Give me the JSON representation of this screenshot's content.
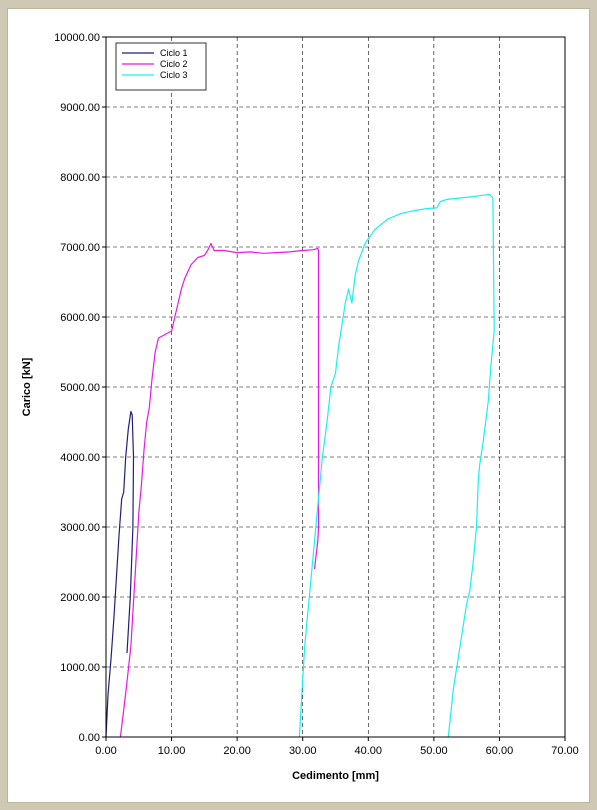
{
  "chart_data": {
    "type": "line",
    "xlabel": "Cedimento [mm]",
    "ylabel": "Carico [kN]",
    "xlim": [
      0,
      70
    ],
    "ylim": [
      0,
      10000
    ],
    "x_ticks": [
      "0.00",
      "10.00",
      "20.00",
      "30.00",
      "40.00",
      "50.00",
      "60.00",
      "70.00"
    ],
    "y_ticks": [
      "0.00",
      "1000.00",
      "2000.00",
      "3000.00",
      "4000.00",
      "5000.00",
      "6000.00",
      "7000.00",
      "8000.00",
      "9000.00",
      "10000.00"
    ],
    "grid": true,
    "legend_position": "top-left",
    "series": [
      {
        "name": "Ciclo 1",
        "color": "#1f1f7a",
        "points": [
          [
            0,
            0
          ],
          [
            0.3,
            600
          ],
          [
            0.8,
            1150
          ],
          [
            1.2,
            1700
          ],
          [
            1.6,
            2300
          ],
          [
            2.0,
            2900
          ],
          [
            2.4,
            3400
          ],
          [
            2.7,
            3500
          ],
          [
            3.0,
            4000
          ],
          [
            3.4,
            4400
          ],
          [
            3.8,
            4650
          ],
          [
            4.0,
            4600
          ],
          [
            4.2,
            4000
          ],
          [
            4.1,
            3000
          ],
          [
            3.7,
            2000
          ],
          [
            3.2,
            1200
          ]
        ]
      },
      {
        "name": "Ciclo 2",
        "color": "#e619e6",
        "points": [
          [
            2.2,
            0
          ],
          [
            2.6,
            300
          ],
          [
            3.1,
            700
          ],
          [
            3.8,
            1300
          ],
          [
            4.5,
            2400
          ],
          [
            5.0,
            3200
          ],
          [
            5.4,
            3600
          ],
          [
            5.8,
            4100
          ],
          [
            6.2,
            4500
          ],
          [
            6.6,
            4700
          ],
          [
            7.0,
            5100
          ],
          [
            7.5,
            5500
          ],
          [
            8.0,
            5700
          ],
          [
            9.0,
            5750
          ],
          [
            10.0,
            5800
          ],
          [
            10.5,
            6000
          ],
          [
            11.0,
            6200
          ],
          [
            11.5,
            6400
          ],
          [
            12.0,
            6550
          ],
          [
            13.0,
            6750
          ],
          [
            14.0,
            6850
          ],
          [
            15.0,
            6880
          ],
          [
            15.5,
            6950
          ],
          [
            16.0,
            7050
          ],
          [
            16.5,
            6950
          ],
          [
            18.0,
            6950
          ],
          [
            20.0,
            6920
          ],
          [
            22.0,
            6930
          ],
          [
            24.0,
            6910
          ],
          [
            26.0,
            6920
          ],
          [
            28.0,
            6930
          ],
          [
            30.0,
            6950
          ],
          [
            31.5,
            6960
          ],
          [
            32.3,
            6980
          ],
          [
            32.4,
            6950
          ],
          [
            32.4,
            3000
          ],
          [
            32.3,
            2800
          ],
          [
            31.8,
            2400
          ]
        ]
      },
      {
        "name": "Ciclo 3",
        "color": "#19f0f0",
        "points": [
          [
            29.5,
            0
          ],
          [
            29.8,
            500
          ],
          [
            30.3,
            1300
          ],
          [
            31.0,
            2000
          ],
          [
            31.7,
            2700
          ],
          [
            32.3,
            3300
          ],
          [
            33.0,
            4000
          ],
          [
            33.7,
            4500
          ],
          [
            34.3,
            5000
          ],
          [
            35.0,
            5200
          ],
          [
            35.5,
            5600
          ],
          [
            36.0,
            5900
          ],
          [
            36.5,
            6200
          ],
          [
            37.0,
            6400
          ],
          [
            37.5,
            6200
          ],
          [
            38.0,
            6600
          ],
          [
            38.5,
            6800
          ],
          [
            39.5,
            7050
          ],
          [
            41.0,
            7250
          ],
          [
            43.0,
            7400
          ],
          [
            45.0,
            7480
          ],
          [
            47.0,
            7520
          ],
          [
            49.0,
            7550
          ],
          [
            50.5,
            7560
          ],
          [
            51.0,
            7650
          ],
          [
            52.0,
            7680
          ],
          [
            54.0,
            7700
          ],
          [
            56.0,
            7720
          ],
          [
            57.5,
            7740
          ],
          [
            58.5,
            7750
          ],
          [
            59.0,
            7700
          ],
          [
            59.2,
            5800
          ],
          [
            58.7,
            5300
          ],
          [
            58.3,
            4800
          ],
          [
            57.5,
            4200
          ],
          [
            57.0,
            3900
          ],
          [
            56.8,
            3700
          ],
          [
            56.5,
            3000
          ],
          [
            56.0,
            2500
          ],
          [
            55.5,
            2100
          ],
          [
            55.0,
            1900
          ],
          [
            54.0,
            1300
          ],
          [
            53.0,
            700
          ],
          [
            52.2,
            0
          ]
        ]
      }
    ]
  }
}
